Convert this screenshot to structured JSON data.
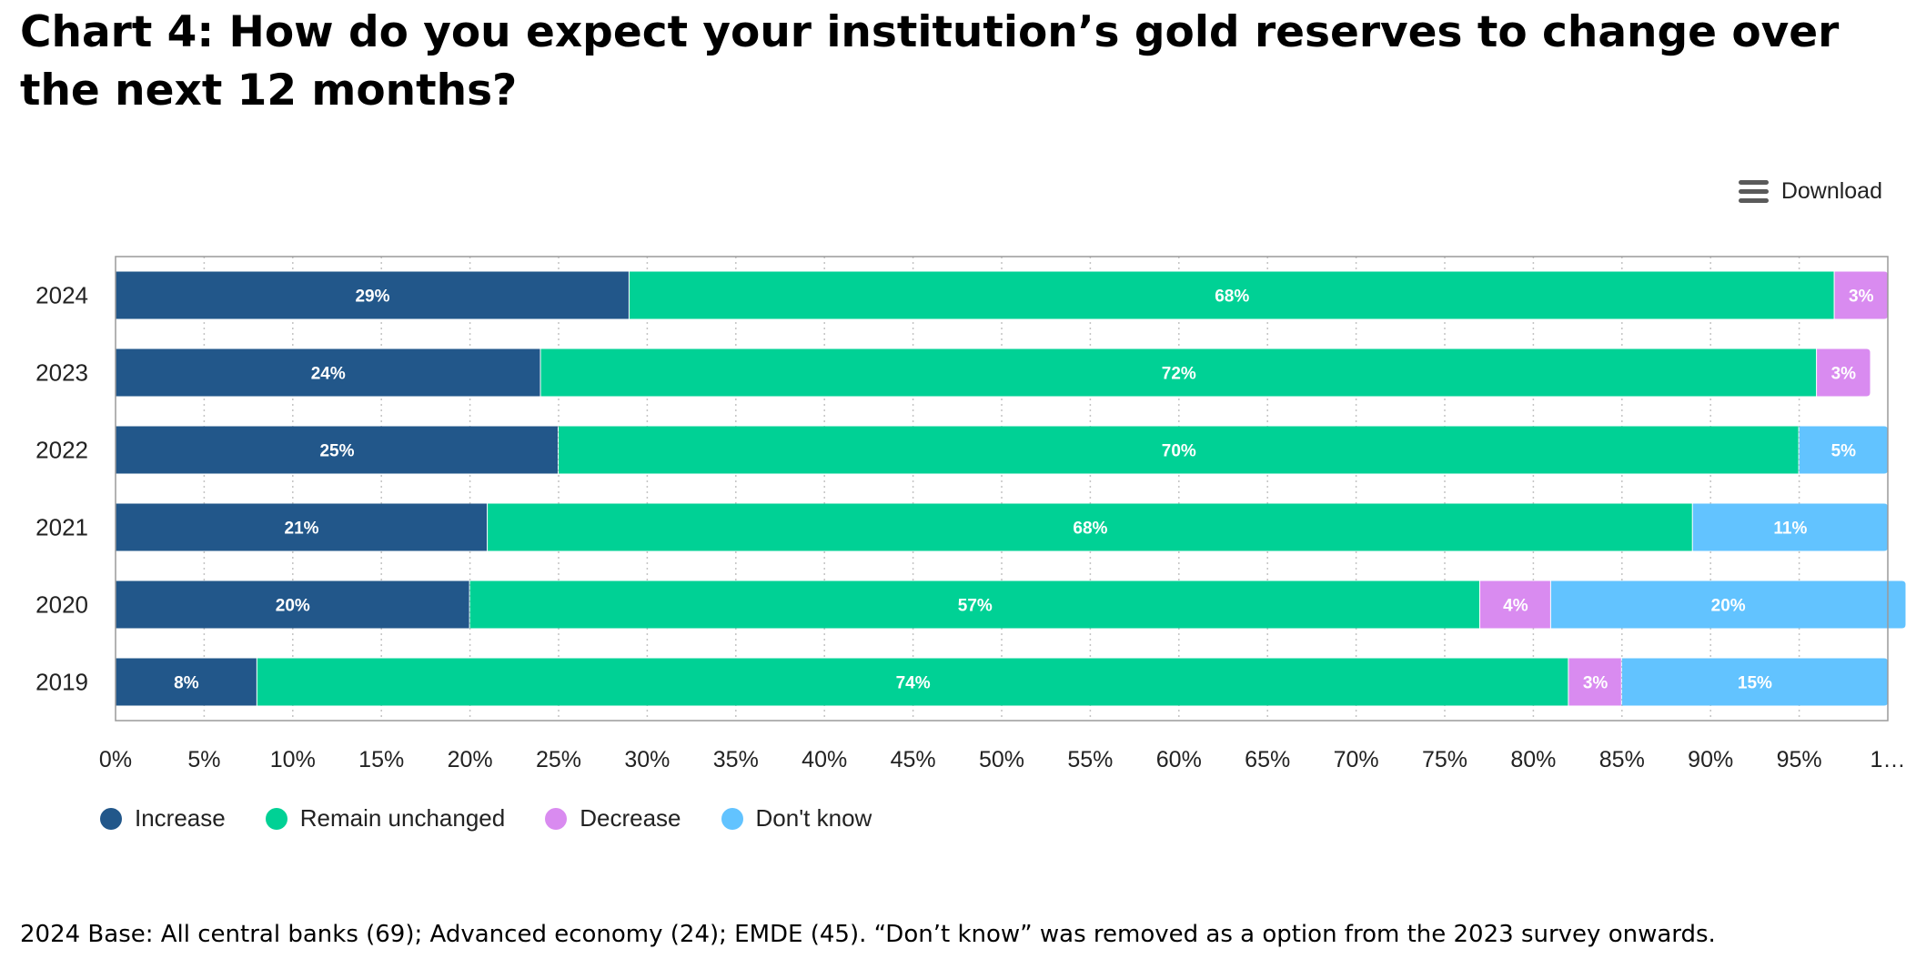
{
  "header": {
    "title": "Chart 4: How do you expect your institution’s gold reserves to change over the next 12 months?"
  },
  "toolbar": {
    "download_label": "Download"
  },
  "footer": {
    "note": "2024 Base: All central banks (69); Advanced economy (24); EMDE (45). “Don’t know” was removed as a option from the 2023 survey onwards."
  },
  "chart_data": {
    "type": "bar",
    "orientation": "horizontal",
    "stacked": true,
    "title": "Chart 4: How do you expect your institution’s gold reserves to change over the next 12 months?",
    "xlabel": "",
    "ylabel": "",
    "xlim": [
      0,
      100
    ],
    "grid": true,
    "legend_position": "bottom-left",
    "categories": [
      "2024",
      "2023",
      "2022",
      "2021",
      "2020",
      "2019"
    ],
    "x_ticks": [
      "0%",
      "5%",
      "10%",
      "15%",
      "20%",
      "25%",
      "30%",
      "35%",
      "40%",
      "45%",
      "50%",
      "55%",
      "60%",
      "65%",
      "70%",
      "75%",
      "80%",
      "85%",
      "90%",
      "95%",
      "1…"
    ],
    "series": [
      {
        "name": "Increase",
        "color": "#22578A",
        "values": [
          29,
          24,
          25,
          21,
          20,
          8
        ]
      },
      {
        "name": "Remain unchanged",
        "color": "#00D195",
        "values": [
          68,
          72,
          70,
          68,
          57,
          74
        ]
      },
      {
        "name": "Decrease",
        "color": "#D98BF0",
        "values": [
          3,
          3,
          null,
          null,
          4,
          3
        ]
      },
      {
        "name": "Don't know",
        "color": "#62C3FF",
        "values": [
          null,
          null,
          5,
          11,
          20,
          15
        ]
      }
    ]
  }
}
